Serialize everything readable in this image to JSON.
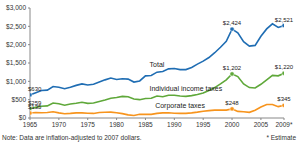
{
  "chart_data": {
    "type": "line",
    "note": "Note: Data are inflation-adjusted to 2007 dollars.",
    "footnote": "* Estimate",
    "x": [
      1965,
      1966,
      1967,
      1968,
      1969,
      1970,
      1971,
      1972,
      1973,
      1974,
      1975,
      1976,
      1977,
      1978,
      1979,
      1980,
      1981,
      1982,
      1983,
      1984,
      1985,
      1986,
      1987,
      1988,
      1989,
      1990,
      1991,
      1992,
      1993,
      1994,
      1995,
      1996,
      1997,
      1998,
      1999,
      2000,
      2001,
      2002,
      2003,
      2004,
      2005,
      2006,
      2007,
      2008,
      2009
    ],
    "xlim": [
      1965,
      2009
    ],
    "xticks": [
      1965,
      1970,
      1975,
      1980,
      1985,
      1990,
      1995,
      2000,
      2005,
      {
        "value": 2009,
        "label": "2009*"
      }
    ],
    "ylim": [
      0,
      3000
    ],
    "yticks": [
      {
        "value": 0,
        "label": "$0"
      },
      {
        "value": 500,
        "label": "$500"
      },
      {
        "value": 1000,
        "label": "$1,000"
      },
      {
        "value": 1500,
        "label": "$1,500"
      },
      {
        "value": 2000,
        "label": "$2,000"
      },
      {
        "value": 2500,
        "label": "$2,500"
      },
      {
        "value": 3000,
        "label": "$3,000"
      }
    ],
    "grid": false,
    "series": [
      {
        "name": "Total",
        "color": "#1f6db3",
        "values": [
          630,
          690,
          750,
          760,
          860,
          840,
          800,
          840,
          890,
          930,
          900,
          920,
          980,
          1040,
          1090,
          1050,
          1070,
          1060,
          980,
          1010,
          1150,
          1160,
          1250,
          1270,
          1340,
          1350,
          1320,
          1320,
          1380,
          1470,
          1550,
          1650,
          1780,
          1930,
          2090,
          2424,
          2320,
          2080,
          1960,
          1980,
          2230,
          2430,
          2568,
          2470,
          2521
        ],
        "value_labels": [
          "$630",
          null,
          null,
          null,
          null,
          null,
          null,
          null,
          null,
          null,
          null,
          null,
          null,
          null,
          null,
          null,
          null,
          null,
          null,
          null,
          null,
          null,
          null,
          null,
          null,
          null,
          null,
          null,
          null,
          null,
          null,
          null,
          null,
          null,
          null,
          "$2,424",
          null,
          null,
          null,
          null,
          null,
          null,
          null,
          null,
          "$2,521"
        ]
      },
      {
        "name": "Individual income taxes",
        "color": "#5fa83a",
        "values": [
          259,
          290,
          320,
          330,
          410,
          390,
          350,
          380,
          400,
          430,
          400,
          410,
          450,
          490,
          540,
          560,
          590,
          580,
          520,
          500,
          530,
          540,
          600,
          580,
          620,
          620,
          600,
          590,
          610,
          640,
          680,
          750,
          830,
          930,
          1040,
          1202,
          1130,
          930,
          830,
          820,
          920,
          1040,
          1163,
          1150,
          1220
        ],
        "value_labels": [
          "$259",
          null,
          null,
          null,
          null,
          null,
          null,
          null,
          null,
          null,
          null,
          null,
          null,
          null,
          null,
          null,
          null,
          null,
          null,
          null,
          null,
          null,
          null,
          null,
          null,
          null,
          null,
          null,
          null,
          null,
          null,
          null,
          null,
          null,
          null,
          "$1,202",
          null,
          null,
          null,
          null,
          null,
          null,
          null,
          null,
          "$1,220"
        ]
      },
      {
        "name": "Corporate taxes",
        "color": "#f7941d",
        "values": [
          135,
          150,
          145,
          150,
          170,
          140,
          115,
          125,
          140,
          140,
          130,
          125,
          150,
          155,
          160,
          145,
          120,
          85,
          70,
          100,
          100,
          100,
          125,
          140,
          145,
          130,
          125,
          125,
          140,
          160,
          185,
          200,
          215,
          220,
          215,
          248,
          180,
          170,
          155,
          210,
          300,
          370,
          370,
          310,
          345
        ],
        "value_labels": [
          "$135",
          null,
          null,
          null,
          null,
          null,
          null,
          null,
          null,
          null,
          null,
          null,
          null,
          null,
          null,
          null,
          null,
          null,
          null,
          null,
          null,
          null,
          null,
          null,
          null,
          null,
          null,
          null,
          null,
          null,
          null,
          null,
          null,
          null,
          null,
          "$248",
          null,
          null,
          null,
          null,
          null,
          null,
          null,
          null,
          "$345"
        ]
      }
    ]
  }
}
